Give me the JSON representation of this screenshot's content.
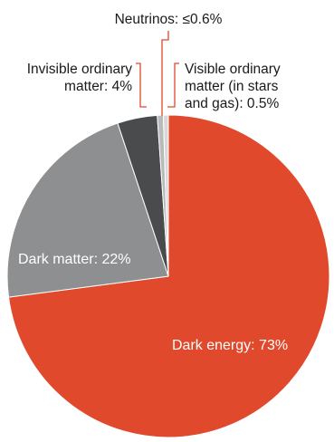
{
  "chart_data": {
    "type": "pie",
    "slices": [
      {
        "label": "Dark energy: 73%",
        "value": 73,
        "color": "#e0492b"
      },
      {
        "label": "Dark matter: 22%",
        "value": 22,
        "color": "#8e8f91"
      },
      {
        "label": "Invisible ordinary matter: 4%",
        "value": 4,
        "color": "#4a4b4d"
      },
      {
        "label": "Neutrinos: ≤0.6%",
        "value": 0.6,
        "color": "#b9babc"
      },
      {
        "label": "Visible ordinary matter (in stars and gas): 0.5%",
        "value": 0.5,
        "color": "#d8d8d8"
      }
    ],
    "labels": {
      "dark_energy": "Dark energy: 73%",
      "dark_matter": "Dark matter: 22%",
      "invisible_line1": "Invisible ordinary",
      "invisible_line2": "matter: 4%",
      "neutrinos": "Neutrinos: ≤0.6%",
      "visible_line1": "Visible ordinary",
      "visible_line2": "matter (in stars",
      "visible_line3": "and gas): 0.5%"
    },
    "leader_color": "#e0492b"
  }
}
